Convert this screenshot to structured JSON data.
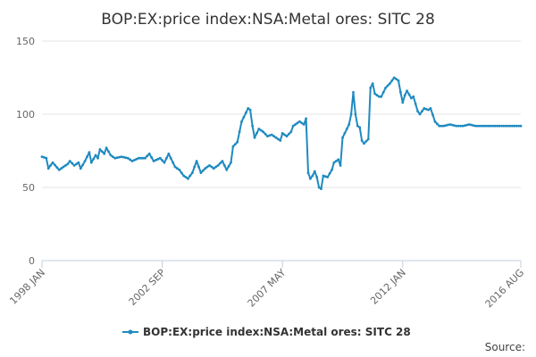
{
  "chart_data": {
    "type": "line",
    "title": "BOP:EX:price index:NSA:Metal ores: SITC 28",
    "xlabel": "",
    "ylabel": "",
    "ylim": [
      0,
      150
    ],
    "yticks": [
      "0",
      "50",
      "100",
      "150"
    ],
    "x_start": "1998 JAN",
    "x_end": "2016 AUG",
    "x_count": 224,
    "xticks": [
      {
        "label": "1998 JAN",
        "index": 0
      },
      {
        "label": "2002 SEP",
        "index": 56
      },
      {
        "label": "2007 MAY",
        "index": 112
      },
      {
        "label": "2012 JAN",
        "index": 168
      },
      {
        "label": "2016 AUG",
        "index": 223
      }
    ],
    "legend": "top-bottom center",
    "series": [
      {
        "name": "BOP:EX:price index:NSA:Metal ores: SITC 28",
        "color": "#1f8ac0",
        "anchors": [
          [
            0,
            71
          ],
          [
            2,
            70
          ],
          [
            3,
            63
          ],
          [
            5,
            67
          ],
          [
            8,
            62
          ],
          [
            10,
            64
          ],
          [
            12,
            66
          ],
          [
            13,
            68
          ],
          [
            15,
            65
          ],
          [
            17,
            67
          ],
          [
            18,
            63
          ],
          [
            20,
            68
          ],
          [
            22,
            74
          ],
          [
            23,
            67
          ],
          [
            25,
            72
          ],
          [
            26,
            70
          ],
          [
            27,
            76
          ],
          [
            29,
            73
          ],
          [
            30,
            77
          ],
          [
            32,
            72
          ],
          [
            34,
            70
          ],
          [
            37,
            71
          ],
          [
            40,
            70
          ],
          [
            42,
            68
          ],
          [
            45,
            70
          ],
          [
            48,
            70
          ],
          [
            50,
            73
          ],
          [
            52,
            68
          ],
          [
            55,
            70
          ],
          [
            57,
            67
          ],
          [
            59,
            73
          ],
          [
            60,
            70
          ],
          [
            62,
            64
          ],
          [
            64,
            62
          ],
          [
            66,
            58
          ],
          [
            68,
            56
          ],
          [
            70,
            60
          ],
          [
            72,
            68
          ],
          [
            74,
            60
          ],
          [
            76,
            63
          ],
          [
            78,
            65
          ],
          [
            80,
            63
          ],
          [
            82,
            65
          ],
          [
            84,
            68
          ],
          [
            86,
            62
          ],
          [
            88,
            67
          ],
          [
            89,
            78
          ],
          [
            91,
            81
          ],
          [
            93,
            95
          ],
          [
            94,
            98
          ],
          [
            96,
            104
          ],
          [
            97,
            103
          ],
          [
            98,
            92
          ],
          [
            99,
            84
          ],
          [
            101,
            90
          ],
          [
            103,
            88
          ],
          [
            105,
            85
          ],
          [
            107,
            86
          ],
          [
            109,
            84
          ],
          [
            111,
            82
          ],
          [
            112,
            87
          ],
          [
            114,
            85
          ],
          [
            116,
            88
          ],
          [
            117,
            92
          ],
          [
            118,
            93
          ],
          [
            120,
            95
          ],
          [
            122,
            93
          ],
          [
            123,
            97
          ],
          [
            124,
            60
          ],
          [
            125,
            56
          ],
          [
            126,
            58
          ],
          [
            127,
            61
          ],
          [
            128,
            57
          ],
          [
            129,
            50
          ],
          [
            130,
            49
          ],
          [
            131,
            58
          ],
          [
            133,
            57
          ],
          [
            135,
            62
          ],
          [
            136,
            67
          ],
          [
            138,
            69
          ],
          [
            139,
            65
          ],
          [
            140,
            84
          ],
          [
            142,
            90
          ],
          [
            143,
            93
          ],
          [
            144,
            100
          ],
          [
            145,
            115
          ],
          [
            146,
            100
          ],
          [
            147,
            92
          ],
          [
            148,
            91
          ],
          [
            149,
            82
          ],
          [
            150,
            80
          ],
          [
            152,
            83
          ],
          [
            153,
            118
          ],
          [
            154,
            121
          ],
          [
            155,
            114
          ],
          [
            157,
            112
          ],
          [
            158,
            112
          ],
          [
            160,
            118
          ],
          [
            162,
            121
          ],
          [
            164,
            125
          ],
          [
            166,
            123
          ],
          [
            167,
            115
          ],
          [
            168,
            108
          ],
          [
            169,
            113
          ],
          [
            170,
            116
          ],
          [
            172,
            111
          ],
          [
            173,
            112
          ],
          [
            175,
            102
          ],
          [
            176,
            100
          ],
          [
            178,
            104
          ],
          [
            180,
            103
          ],
          [
            181,
            104
          ],
          [
            183,
            95
          ],
          [
            185,
            92
          ],
          [
            187,
            92
          ],
          [
            190,
            93
          ],
          [
            193,
            92
          ],
          [
            196,
            92
          ],
          [
            199,
            93
          ],
          [
            202,
            92
          ],
          [
            205,
            92
          ],
          [
            208,
            92
          ],
          [
            212,
            92
          ],
          [
            216,
            92
          ],
          [
            220,
            92
          ],
          [
            223,
            92
          ]
        ]
      }
    ]
  },
  "source_label": "Source:"
}
